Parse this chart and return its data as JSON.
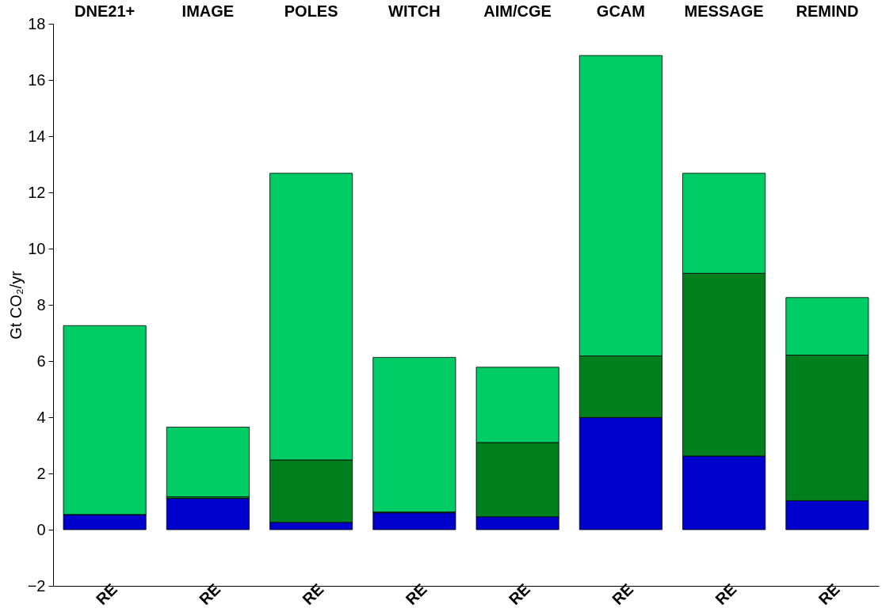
{
  "chart_data": {
    "type": "bar",
    "stacked": true,
    "categories": [
      "DNE21+",
      "IMAGE",
      "POLES",
      "WITCH",
      "AIM/CGE",
      "GCAM",
      "MESSAGE",
      "REMIND"
    ],
    "ylabel": "Gt CO₂/yr",
    "ylim": [
      -2,
      18
    ],
    "yticks": [
      -2,
      0,
      2,
      4,
      6,
      8,
      10,
      12,
      14,
      16,
      18
    ],
    "series": [
      {
        "color": "#0000cc",
        "values": [
          0.54,
          1.11,
          0.26,
          0.6,
          0.46,
          3.99,
          2.62,
          1.03
        ]
      },
      {
        "color": "#007f1f",
        "values": [
          0,
          0.06,
          2.22,
          0.03,
          2.64,
          2.19,
          6.5,
          5.18
        ]
      },
      {
        "color": "#00cc66",
        "values": [
          6.72,
          2.48,
          10.2,
          5.5,
          2.68,
          10.69,
          3.56,
          2.05
        ]
      }
    ],
    "annotations": [
      "RE",
      "RE",
      "RE",
      "RE",
      "RE",
      "RE",
      "RE",
      "RE"
    ],
    "grid": false,
    "legend": false
  }
}
